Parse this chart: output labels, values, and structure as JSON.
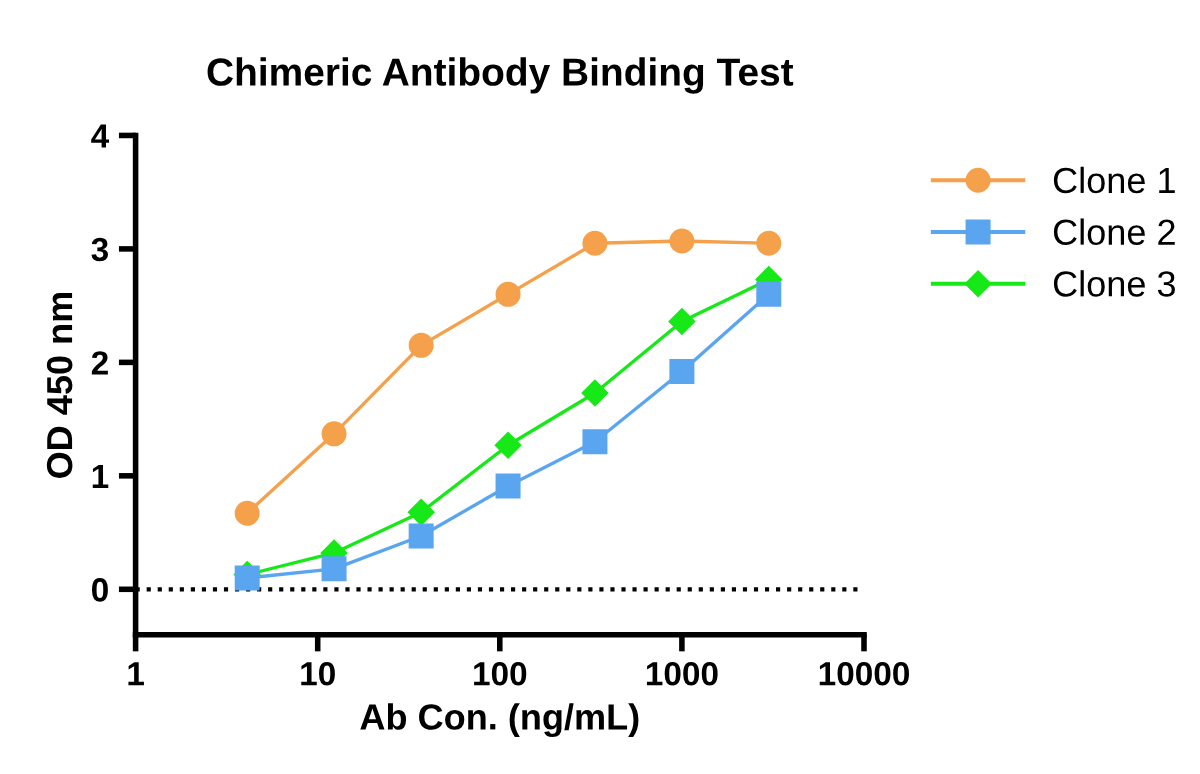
{
  "chart_data": {
    "type": "line",
    "title": "Chimeric Antibody Binding Test",
    "xlabel": "Ab Con. (ng/mL)",
    "ylabel": "OD 450 nm",
    "x": [
      4.1,
      12.3,
      37,
      111,
      333,
      1000,
      3000
    ],
    "series": [
      {
        "name": "Clone 1",
        "color": "#f5a04a",
        "marker": "circle",
        "values": [
          0.67,
          1.37,
          2.15,
          2.6,
          3.05,
          3.07,
          3.05
        ]
      },
      {
        "name": "Clone 2",
        "color": "#5aa5ef",
        "marker": "square",
        "values": [
          0.1,
          0.18,
          0.47,
          0.91,
          1.3,
          1.92,
          2.6
        ]
      },
      {
        "name": "Clone 3",
        "color": "#17e817",
        "marker": "diamond",
        "values": [
          0.13,
          0.32,
          0.68,
          1.27,
          1.73,
          2.36,
          2.73
        ]
      }
    ],
    "log": "x",
    "xlim": [
      1,
      10000
    ],
    "xticks": [
      1,
      10,
      100,
      1000,
      10000
    ],
    "ylim": [
      -0.4,
      4
    ],
    "yticks": [
      0,
      1,
      2,
      3,
      4
    ],
    "ref_lines": [
      {
        "axis": "y",
        "value": 0,
        "color": "#000000",
        "line_style": "dotted"
      }
    ],
    "grid": false,
    "legend": "right",
    "line_style": "solid"
  }
}
